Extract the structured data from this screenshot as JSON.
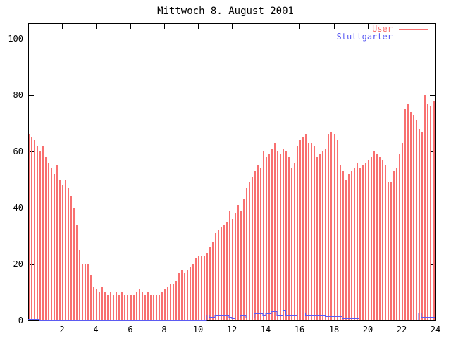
{
  "window": {
    "description": "gnuplot-style daily usage graph, white background, black axes"
  },
  "chart_data": {
    "type": "bar",
    "title": "Mittwoch 8. August 2001",
    "xlabel": "",
    "ylabel": "",
    "x_unit": "hour of day",
    "x_start_hour": 0,
    "x_step_minutes": 10,
    "xlim": [
      0,
      24
    ],
    "ylim": [
      0,
      105
    ],
    "x_ticks": [
      2,
      4,
      6,
      8,
      10,
      12,
      14,
      16,
      18,
      20,
      22,
      24
    ],
    "y_ticks": [
      0,
      20,
      40,
      60,
      80,
      100
    ],
    "grid": false,
    "legend_position": "top-right-inside",
    "colors": {
      "user_series": "#f87070",
      "stuttgarter_series": "#5b5bf2",
      "axis": "#000000",
      "background": "#ffffff"
    },
    "series": [
      {
        "name": "User",
        "style": "impulses",
        "color": "#f87070",
        "values": [
          66,
          65,
          64,
          62,
          60,
          62,
          58,
          56,
          54,
          52,
          55,
          50,
          48,
          50,
          47,
          44,
          40,
          34,
          25,
          20,
          20,
          20,
          16,
          12,
          11,
          10,
          12,
          10,
          9,
          10,
          9,
          10,
          9,
          10,
          9,
          9,
          9,
          9,
          10,
          11,
          10,
          9,
          10,
          9,
          9,
          9,
          9,
          10,
          11,
          12,
          13,
          13,
          14,
          17,
          18,
          17,
          18,
          19,
          20,
          22,
          23,
          23,
          23,
          24,
          26,
          28,
          31,
          32,
          33,
          34,
          35,
          39,
          36,
          38,
          41,
          39,
          43,
          47,
          49,
          51,
          53,
          55,
          54,
          60,
          58,
          59,
          61,
          63,
          60,
          59,
          61,
          60,
          58,
          54,
          56,
          62,
          64,
          65,
          66,
          63,
          63,
          62,
          58,
          59,
          60,
          61,
          66,
          67,
          66,
          64,
          55,
          53,
          50,
          52,
          53,
          54,
          56,
          54,
          55,
          56,
          57,
          58,
          60,
          59,
          58,
          57,
          55,
          49,
          49,
          53,
          54,
          59,
          63,
          75,
          77,
          74,
          73,
          71,
          68,
          67,
          80,
          77,
          76,
          78,
          78
        ]
      },
      {
        "name": "Stuttgarter",
        "style": "line",
        "color": "#5b5bf2",
        "values": [
          0.5,
          0.5,
          0.5,
          0.5,
          0,
          0,
          0,
          0,
          0,
          0,
          0,
          0,
          0,
          0,
          0,
          0,
          0,
          0,
          0,
          0,
          0,
          0,
          0,
          0,
          0,
          0,
          0,
          0,
          0,
          0,
          0,
          0,
          0,
          0,
          0,
          0,
          0,
          0,
          0,
          0,
          0,
          0,
          0,
          0,
          0,
          0,
          0,
          0,
          0,
          0,
          0,
          0,
          0,
          0,
          0,
          0,
          0,
          0,
          0,
          0,
          0,
          0,
          0,
          2,
          1.2,
          1.2,
          1.7,
          1.7,
          1.7,
          1.7,
          1.7,
          1.2,
          0.8,
          1,
          1,
          1.8,
          1.8,
          1,
          1,
          1,
          2.5,
          2.5,
          2.5,
          1.7,
          2.5,
          2.5,
          3.2,
          3.2,
          1.7,
          1.7,
          3.8,
          1.7,
          1.7,
          1.7,
          1.7,
          2.7,
          2.7,
          2.7,
          1.7,
          1.7,
          1.7,
          1.7,
          1.7,
          1.7,
          1.7,
          1.5,
          1.5,
          1.5,
          1.5,
          1.5,
          1.5,
          0.8,
          0.8,
          0.8,
          0.8,
          0.8,
          0.8,
          0.2,
          0.2,
          0.2,
          0.2,
          0.2,
          0.2,
          0.2,
          0.2,
          0.2,
          0.2,
          0.2,
          0.2,
          0.2,
          0.2,
          0.2,
          0.2,
          0.2,
          0.2,
          0.2,
          0.2,
          0.2,
          2.8,
          1.2,
          1.2,
          1.2,
          1.2,
          1.2,
          1.2
        ]
      }
    ]
  }
}
